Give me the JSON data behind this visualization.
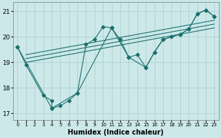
{
  "xlabel": "Humidex (Indice chaleur)",
  "bg_color": "#cce8e8",
  "line_color": "#1a6e6e",
  "xlim": [
    -0.5,
    23.5
  ],
  "ylim": [
    16.75,
    21.35
  ],
  "xticks": [
    0,
    1,
    2,
    3,
    4,
    5,
    6,
    7,
    8,
    9,
    10,
    11,
    12,
    13,
    14,
    15,
    16,
    17,
    18,
    19,
    20,
    21,
    22,
    23
  ],
  "yticks": [
    17,
    18,
    19,
    20,
    21
  ],
  "line1_x": [
    0,
    1,
    3,
    4,
    4,
    5,
    6,
    7,
    8,
    9,
    10,
    11,
    12,
    13,
    14,
    15,
    16,
    17,
    18,
    19,
    20,
    21,
    22,
    23
  ],
  "line1_y": [
    19.6,
    18.9,
    17.7,
    17.5,
    17.2,
    17.3,
    17.5,
    17.8,
    19.7,
    19.9,
    20.4,
    20.35,
    19.9,
    19.2,
    19.3,
    18.8,
    19.4,
    19.9,
    20.0,
    20.1,
    20.3,
    20.9,
    21.05,
    20.8
  ],
  "trend1_x": [
    1,
    23
  ],
  "trend1_y": [
    19.0,
    20.35
  ],
  "trend2_x": [
    1,
    23
  ],
  "trend2_y": [
    19.15,
    20.5
  ],
  "trend3_x": [
    1,
    23
  ],
  "trend3_y": [
    19.3,
    20.65
  ],
  "spike_x": [
    0,
    4,
    7,
    11,
    13,
    15,
    16,
    17,
    19,
    20,
    21,
    22,
    23
  ],
  "spike_y": [
    19.6,
    17.2,
    17.8,
    20.35,
    19.2,
    18.8,
    19.4,
    19.9,
    20.1,
    20.3,
    20.9,
    21.05,
    20.8
  ]
}
